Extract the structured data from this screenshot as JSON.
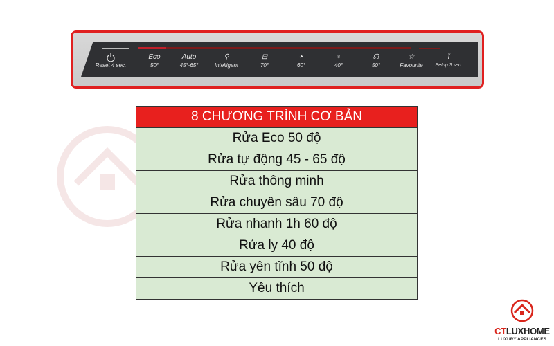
{
  "panel": {
    "buttons": [
      {
        "icon": "power-icon",
        "top": "",
        "bottom": "Reset 4 sec."
      },
      {
        "icon": "",
        "top": "Eco",
        "bottom": "50°"
      },
      {
        "icon": "",
        "top": "Auto",
        "bottom": "45°-65°"
      },
      {
        "icon": "intelligent-icon",
        "top": "",
        "bottom": "Intelligent"
      },
      {
        "icon": "pot-icon",
        "top": "",
        "bottom": "70°"
      },
      {
        "icon": "quick-wash-icon",
        "top": "",
        "bottom": "60°"
      },
      {
        "icon": "glass-icon",
        "top": "",
        "bottom": "40°"
      },
      {
        "icon": "silence-icon",
        "top": "",
        "bottom": "50°"
      },
      {
        "icon": "star-icon",
        "top": "",
        "bottom": "Favourite"
      },
      {
        "icon": "info-icon",
        "top": "",
        "bottom": "Setup 3 sec."
      }
    ]
  },
  "table": {
    "header": "8 CHƯƠNG TRÌNH CƠ BẢN",
    "rows": [
      "Rửa Eco 50 độ",
      "Rửa tự động 45 - 65 độ",
      "Rửa thông minh",
      "Rửa chuyên sâu 70 độ",
      "Rửa nhanh 1h 60 độ",
      "Rửa ly 40 độ",
      "Rửa yên tĩnh 50 độ",
      "Yêu thích"
    ]
  },
  "logo": {
    "brand_a": "CT",
    "brand_b": "LUXHOME",
    "tagline": "LUXURY APPLIANCES"
  },
  "colors": {
    "accent": "#e02020",
    "row_bg": "#d9ead3",
    "panel": "#2f3033"
  }
}
